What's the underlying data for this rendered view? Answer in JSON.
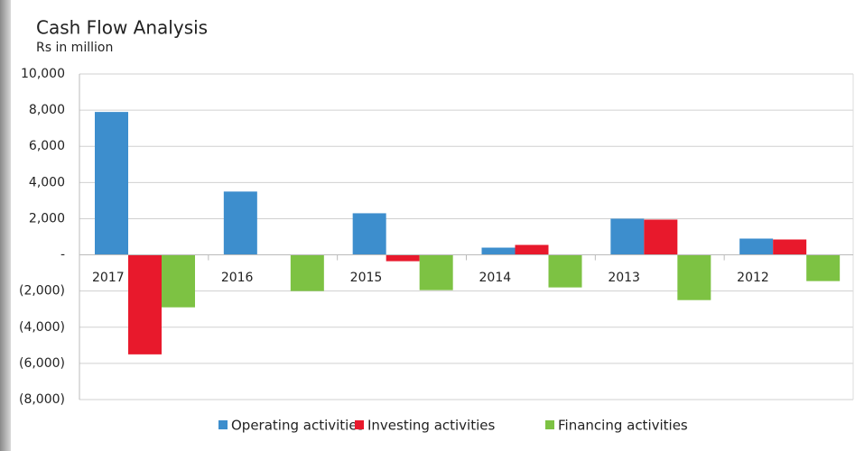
{
  "chart_data": {
    "type": "bar",
    "title": "Cash Flow Analysis",
    "subtitle": "Rs in million",
    "categories": [
      "2017",
      "2016",
      "2015",
      "2014",
      "2013",
      "2012"
    ],
    "series": [
      {
        "name": "Operating activities",
        "color": "#3d8ecd",
        "values": [
          7900,
          3500,
          2300,
          400,
          2000,
          900
        ]
      },
      {
        "name": "Investing activities",
        "color": "#e8192c",
        "values": [
          -5500,
          0,
          -350,
          550,
          1950,
          850
        ]
      },
      {
        "name": "Financing activities",
        "color": "#7dc243",
        "values": [
          -2900,
          -2000,
          -1950,
          -1800,
          -2500,
          -1450
        ]
      }
    ],
    "ylim": [
      -8000,
      10000
    ],
    "yticks": [
      {
        "value": -8000,
        "label": "(8,000)"
      },
      {
        "value": -6000,
        "label": "(6,000)"
      },
      {
        "value": -4000,
        "label": "(4,000)"
      },
      {
        "value": -2000,
        "label": "(2,000)"
      },
      {
        "value": 0,
        "label": "-"
      },
      {
        "value": 2000,
        "label": "2,000"
      },
      {
        "value": 4000,
        "label": "4,000"
      },
      {
        "value": 6000,
        "label": "6,000"
      },
      {
        "value": 8000,
        "label": "8,000"
      },
      {
        "value": 10000,
        "label": "10,000"
      }
    ],
    "grid": true,
    "legend": "bottom"
  }
}
